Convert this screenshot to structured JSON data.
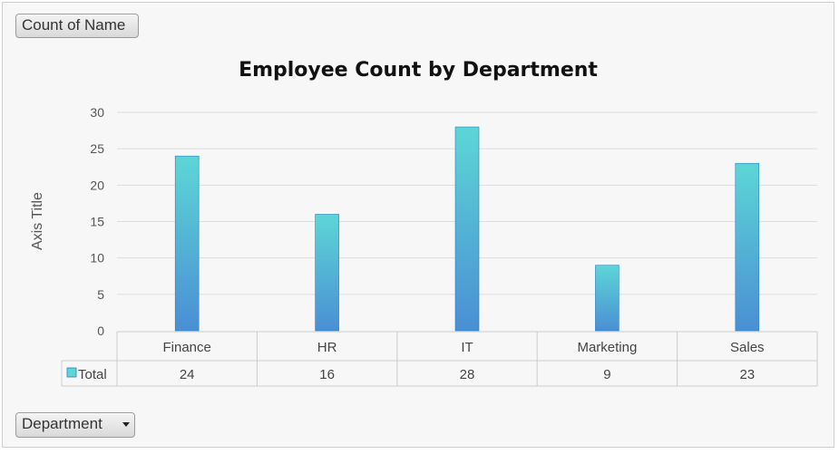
{
  "filter_buttons": {
    "value_field": "Count of Name",
    "axis_field": "Department"
  },
  "chart_data": {
    "type": "bar",
    "title": "Employee Count by Department",
    "ylabel": "Axis Title",
    "xlabel": "",
    "categories": [
      "Finance",
      "HR",
      "IT",
      "Marketing",
      "Sales"
    ],
    "series": [
      {
        "name": "Total",
        "values": [
          24,
          16,
          28,
          9,
          23
        ],
        "color_top": "#5dd6d6",
        "color_bottom": "#4a8fd4"
      }
    ],
    "ylim": [
      0,
      30
    ],
    "yticks": [
      0,
      5,
      10,
      15,
      20,
      25,
      30
    ],
    "grid": true,
    "data_table": true
  },
  "colors": {
    "gridline": "#dddddd",
    "table_border": "#cccccc",
    "bar_outline": "#2f7fc0"
  },
  "icons": {
    "legend_key": "legend-square-icon",
    "dropdown": "chevron-down-icon"
  }
}
